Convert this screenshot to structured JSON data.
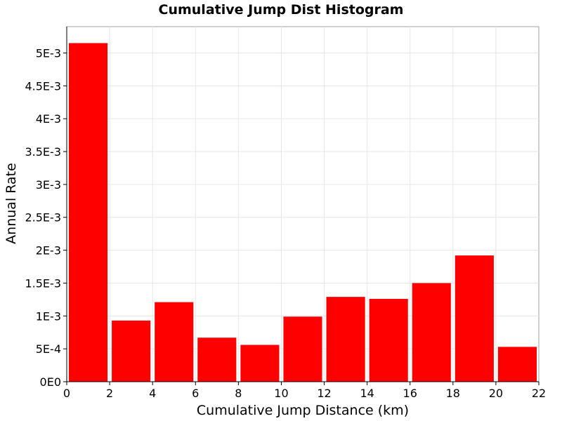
{
  "chart_data": {
    "type": "bar",
    "title": "Cumulative Jump Dist Histogram",
    "xlabel": "Cumulative Jump Distance (km)",
    "ylabel": "Annual Rate",
    "xlim": [
      0,
      22
    ],
    "ylim": [
      0,
      0.0054
    ],
    "x_ticks": [
      0,
      2,
      4,
      6,
      8,
      10,
      12,
      14,
      16,
      18,
      20,
      22
    ],
    "x_tick_labels": [
      "0",
      "2",
      "4",
      "6",
      "8",
      "10",
      "12",
      "14",
      "16",
      "18",
      "20",
      "22"
    ],
    "y_ticks": [
      0,
      0.0005,
      0.001,
      0.0015,
      0.002,
      0.0025,
      0.003,
      0.0035,
      0.004,
      0.0045,
      0.005
    ],
    "y_tick_labels": [
      "0E0",
      "5E-4",
      "1E-3",
      "1.5E-3",
      "2E-3",
      "2.5E-3",
      "3E-3",
      "3.5E-3",
      "4E-3",
      "4.5E-3",
      "5E-3"
    ],
    "grid": true,
    "bar_color": "#ff0000",
    "bins": [
      {
        "x_start": 0,
        "x_end": 2,
        "value": 0.00515
      },
      {
        "x_start": 2,
        "x_end": 4,
        "value": 0.00093
      },
      {
        "x_start": 4,
        "x_end": 6,
        "value": 0.00121
      },
      {
        "x_start": 6,
        "x_end": 8,
        "value": 0.00067
      },
      {
        "x_start": 8,
        "x_end": 10,
        "value": 0.00056
      },
      {
        "x_start": 10,
        "x_end": 12,
        "value": 0.00099
      },
      {
        "x_start": 12,
        "x_end": 14,
        "value": 0.00129
      },
      {
        "x_start": 14,
        "x_end": 16,
        "value": 0.00126
      },
      {
        "x_start": 16,
        "x_end": 18,
        "value": 0.0015
      },
      {
        "x_start": 18,
        "x_end": 20,
        "value": 0.00192
      },
      {
        "x_start": 20,
        "x_end": 22,
        "value": 0.00053
      }
    ]
  }
}
